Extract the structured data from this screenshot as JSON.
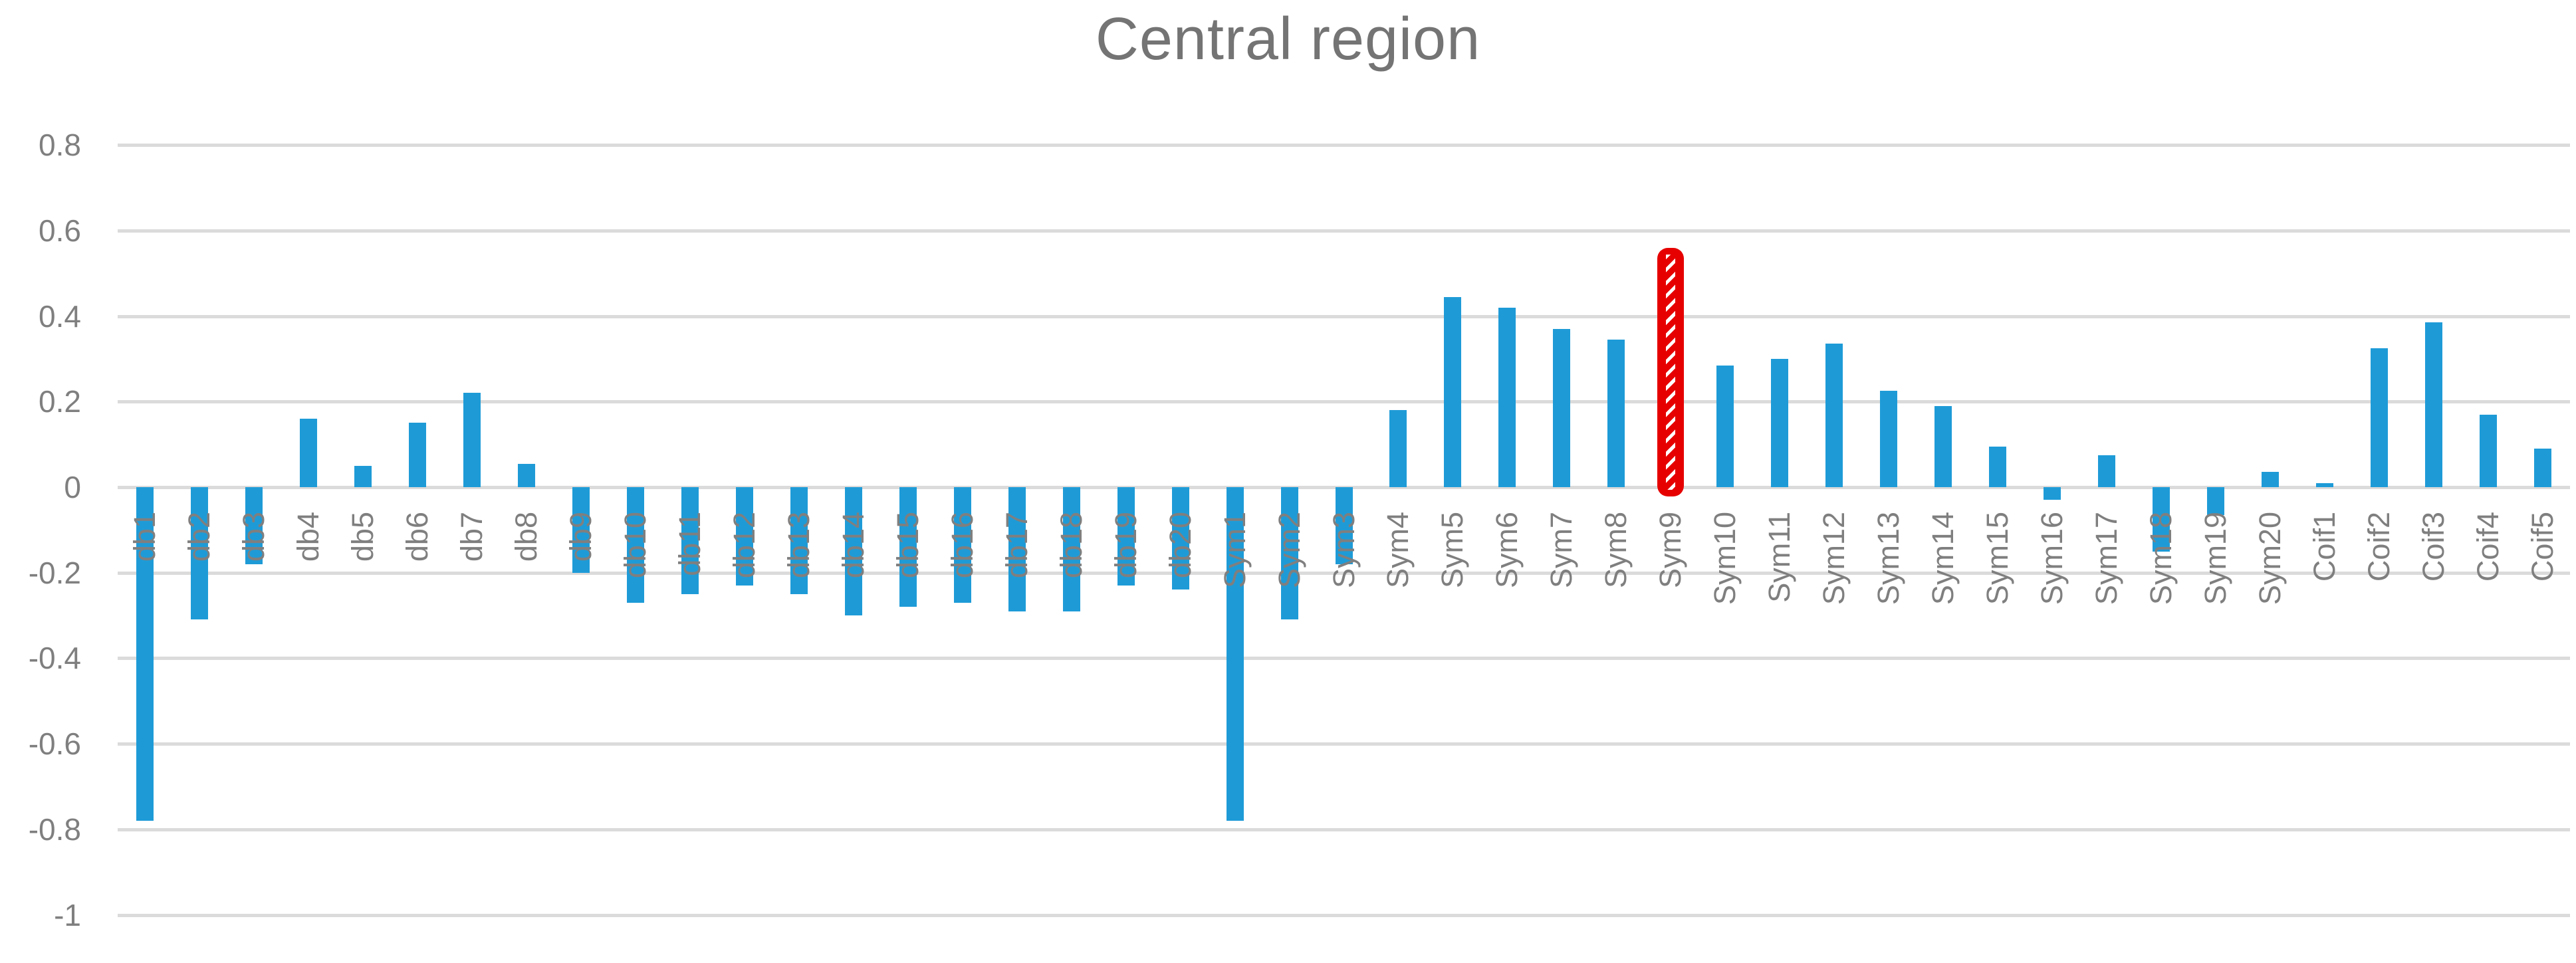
{
  "chart_data": {
    "type": "bar",
    "title": "Central region",
    "categories": [
      "db1",
      "db2",
      "db3",
      "db4",
      "db5",
      "db6",
      "db7",
      "db8",
      "db9",
      "db10",
      "db11",
      "db12",
      "db13",
      "db14",
      "db15",
      "db16",
      "db17",
      "db18",
      "db19",
      "db20",
      "Sym1",
      "Sym2",
      "Sym3",
      "Sym4",
      "Sym5",
      "Sym6",
      "Sym7",
      "Sym8",
      "Sym9",
      "Sym10",
      "Sym11",
      "Sym12",
      "Sym13",
      "Sym14",
      "Sym15",
      "Sym16",
      "Sym17",
      "Sym18",
      "Sym19",
      "Sym20",
      "Coif1",
      "Coif2",
      "Coif3",
      "Coif4",
      "Coif5"
    ],
    "values": [
      -0.78,
      -0.31,
      -0.18,
      0.16,
      0.05,
      0.15,
      0.22,
      0.055,
      -0.2,
      -0.27,
      -0.25,
      -0.23,
      -0.25,
      -0.3,
      -0.28,
      -0.27,
      -0.29,
      -0.29,
      -0.23,
      -0.24,
      -0.78,
      -0.31,
      -0.18,
      0.18,
      0.445,
      0.42,
      0.37,
      0.345,
      0.55,
      0.285,
      0.3,
      0.335,
      0.225,
      0.19,
      0.095,
      -0.03,
      0.075,
      -0.15,
      -0.065,
      0.035,
      0.01,
      0.325,
      0.385,
      0.17,
      0.09
    ],
    "highlight": {
      "category": "Sym9",
      "fill": "#E60000",
      "pattern": "white-diagonal-dashes"
    },
    "ylim": [
      -1,
      0.8
    ],
    "ytick_labels": [
      "0.8",
      "0.6",
      "0.4",
      "0.2",
      "0",
      "-0.2",
      "-0.4",
      "-0.6",
      "-0.8",
      "-1"
    ],
    "yticks": [
      0.8,
      0.6,
      0.4,
      0.2,
      0,
      -0.2,
      -0.4,
      -0.6,
      -0.8,
      -1
    ],
    "xlabel": "",
    "ylabel": "",
    "grid": true,
    "legend": "none",
    "bar_color": "#1E9BD7",
    "gridline_color": "#DBDBDB",
    "axis_text_color": "#7F7F7F",
    "title_color": "#747474"
  }
}
